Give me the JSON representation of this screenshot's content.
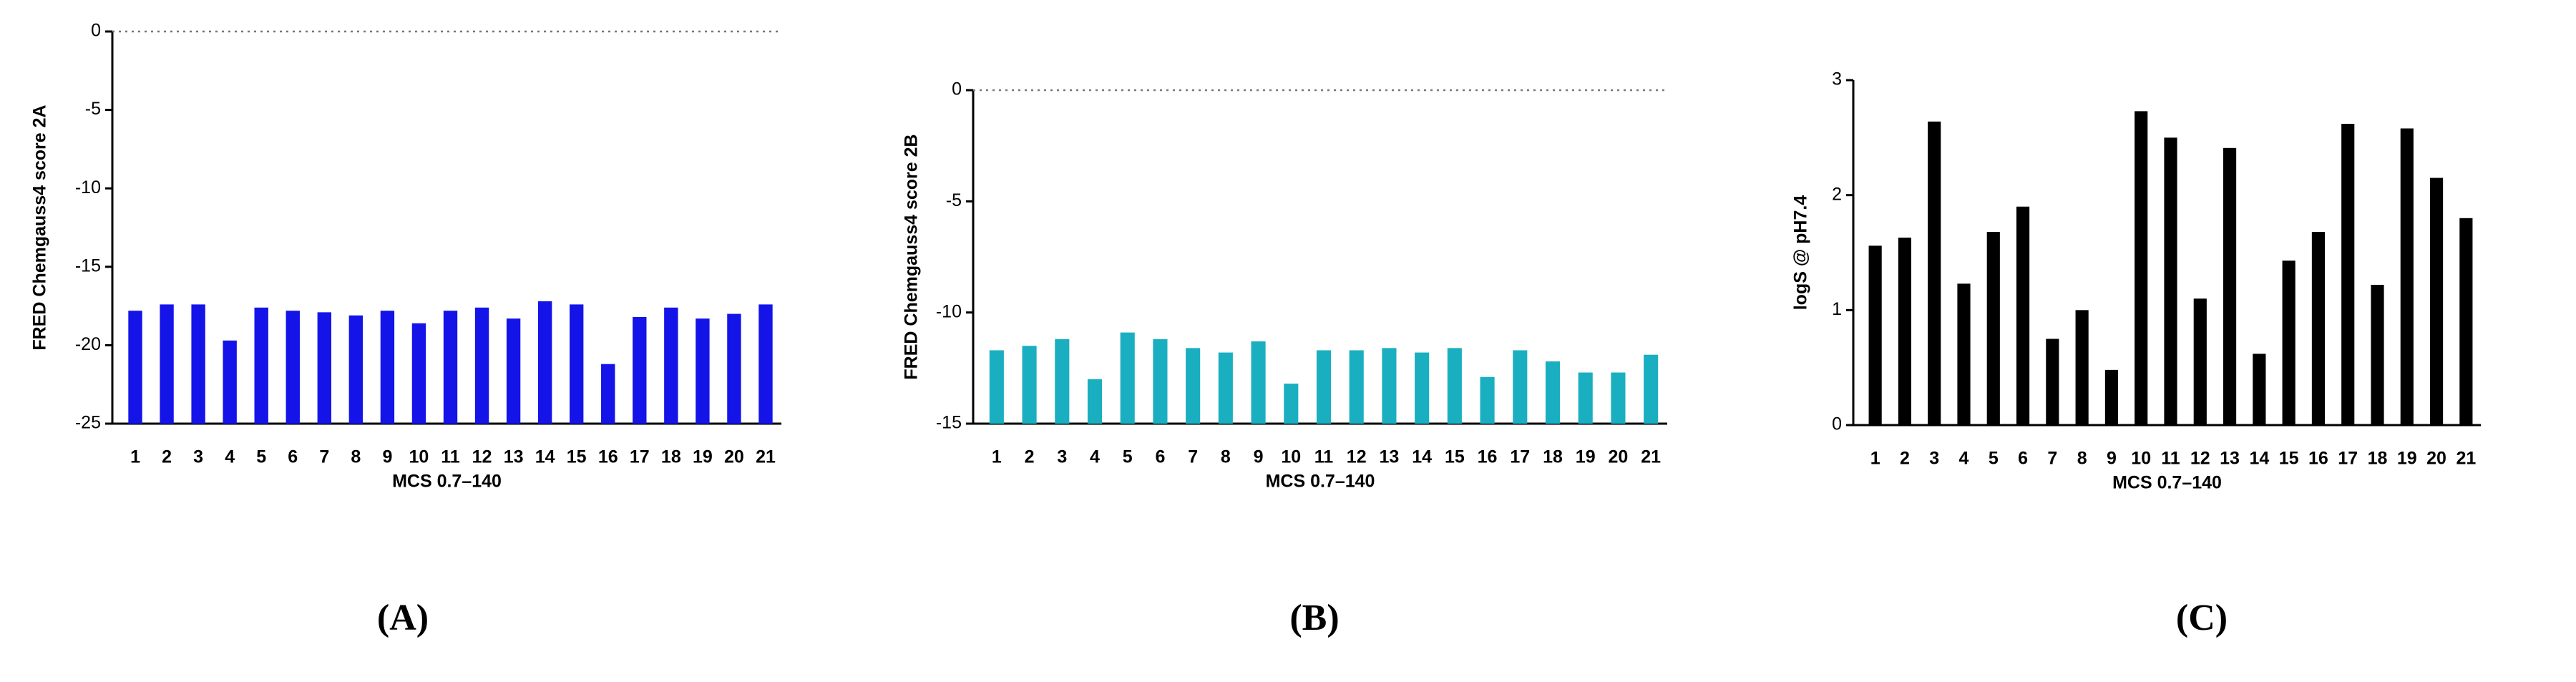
{
  "chart_data": [
    {
      "type": "bar",
      "caption": "(A)",
      "x_label": "MCS 0.7–140",
      "y_label": "FRED Chemgauss4 score 2A",
      "categories": [
        "1",
        "2",
        "3",
        "4",
        "5",
        "6",
        "7",
        "8",
        "9",
        "10",
        "11",
        "12",
        "13",
        "14",
        "15",
        "16",
        "17",
        "18",
        "19",
        "20",
        "21"
      ],
      "values": [
        -17.8,
        -17.4,
        -17.4,
        -19.7,
        -17.6,
        -17.8,
        -17.9,
        -18.1,
        -17.8,
        -18.6,
        -17.8,
        -17.6,
        -18.3,
        -17.2,
        -17.4,
        -21.2,
        -18.2,
        -17.6,
        -18.3,
        -18.0,
        -17.4
      ],
      "color": "#1414e8",
      "ylim": [
        -25,
        0
      ],
      "yticks": [
        0,
        -5,
        -10,
        -15,
        -20,
        -25
      ],
      "top_line": "dotted"
    },
    {
      "type": "bar",
      "caption": "(B)",
      "x_label": "MCS 0.7–140",
      "y_label": "FRED Chemgauss4 score 2B",
      "categories": [
        "1",
        "2",
        "3",
        "4",
        "5",
        "6",
        "7",
        "8",
        "9",
        "10",
        "11",
        "12",
        "13",
        "14",
        "15",
        "16",
        "17",
        "18",
        "19",
        "20",
        "21"
      ],
      "values": [
        -11.7,
        -11.5,
        -11.2,
        -13.0,
        -10.9,
        -11.2,
        -11.6,
        -11.8,
        -11.3,
        -13.2,
        -11.7,
        -11.7,
        -11.6,
        -11.8,
        -11.6,
        -12.9,
        -11.7,
        -12.2,
        -12.7,
        -12.7,
        -11.9
      ],
      "color": "#1aafc0",
      "ylim": [
        -15,
        0
      ],
      "yticks": [
        0,
        -5,
        -10,
        -15
      ],
      "top_line": "dotted"
    },
    {
      "type": "bar",
      "caption": "(C)",
      "x_label": "MCS 0.7–140",
      "y_label": "logS @ pH7.4",
      "categories": [
        "1",
        "2",
        "3",
        "4",
        "5",
        "6",
        "7",
        "8",
        "9",
        "10",
        "11",
        "12",
        "13",
        "14",
        "15",
        "16",
        "17",
        "18",
        "19",
        "20",
        "21"
      ],
      "values": [
        1.56,
        1.63,
        2.64,
        1.23,
        1.68,
        1.9,
        0.75,
        1.0,
        0.48,
        2.73,
        2.5,
        1.1,
        2.41,
        0.62,
        1.43,
        1.68,
        2.62,
        1.22,
        2.58,
        2.15,
        1.8
      ],
      "color": "#000000",
      "ylim": [
        0,
        3
      ],
      "yticks": [
        0,
        1,
        2,
        3
      ],
      "top_line": "none"
    }
  ]
}
